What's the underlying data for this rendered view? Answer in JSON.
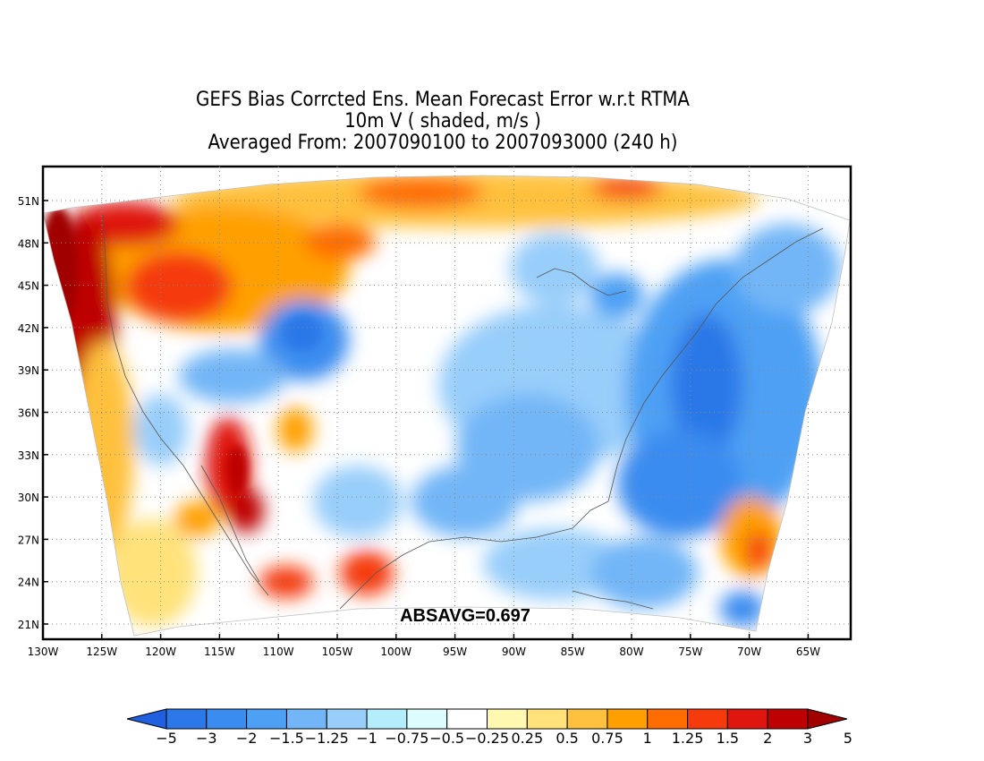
{
  "title_lines": [
    "GEFS Bias Corrcted Ens. Mean Forecast Error w.r.t RTMA",
    "10m V ( shaded, m/s )",
    "Averaged From: 2007090100 to 2007093000 (240 h)"
  ],
  "annotation": "ABSAVG=0.697",
  "lat_ticks": [
    "51N",
    "48N",
    "45N",
    "42N",
    "39N",
    "36N",
    "33N",
    "30N",
    "27N",
    "24N",
    "21N"
  ],
  "lon_ticks": [
    "130W",
    "125W",
    "120W",
    "115W",
    "110W",
    "105W",
    "100W",
    "95W",
    "90W",
    "85W",
    "80W",
    "75W",
    "70W",
    "65W"
  ],
  "colorbar": {
    "colors": [
      "#1f5fe0",
      "#2c78e8",
      "#3a8cf0",
      "#4ea0f4",
      "#72b6f7",
      "#98cefa",
      "#b4eefc",
      "#dcfcfe",
      "#ffffff",
      "#fff8b0",
      "#ffe27a",
      "#ffc13e",
      "#ffa000",
      "#ff6c00",
      "#f53a0c",
      "#df1610",
      "#bd0000",
      "#a00000"
    ],
    "labels": [
      "−5",
      "−3",
      "−2",
      "−1.5",
      "−1.25",
      "−1",
      "−0.75",
      "−0.5",
      "−0.25",
      "0.25",
      "0.5",
      "0.75",
      "1",
      "1.25",
      "1.5",
      "2",
      "3",
      "5"
    ]
  }
}
